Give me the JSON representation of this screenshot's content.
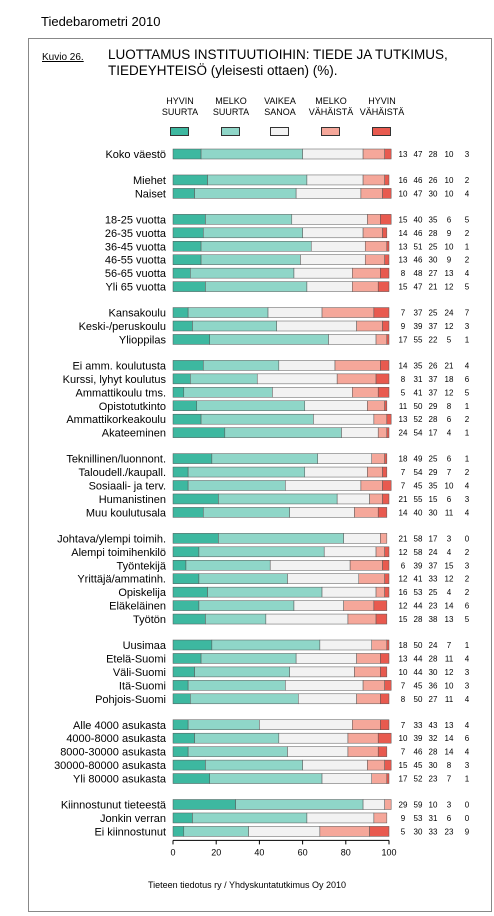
{
  "header": {
    "report_title": "Tiedebarometri 2010",
    "figure_label": "Kuvio 26.",
    "figure_title": "LUOTTAMUS INSTITUUTIOIHIN: TIEDE JA TUTKIMUS, TIEDEYHTEISÖ (yleisesti ottaen) (%)."
  },
  "footer": {
    "source": "Tieteen tiedotus ry / Yhdyskuntatutkimus Oy 2010"
  },
  "colors": [
    "#3db8a0",
    "#8fd6c8",
    "#f2f2f2",
    "#f5a79a",
    "#e85a4f"
  ],
  "chart_data": {
    "type": "bar",
    "orientation": "horizontal",
    "stacked": true,
    "xlim": [
      0,
      100
    ],
    "x_ticks": [
      "0",
      "20",
      "40",
      "60",
      "80",
      "100"
    ],
    "series": [
      {
        "name": "HYVIN SUURTA"
      },
      {
        "name": "MELKO SUURTA"
      },
      {
        "name": "VAIKEA SANOA"
      },
      {
        "name": "MELKO VÄHÄISTÄ"
      },
      {
        "name": "HYVIN VÄHÄISTÄ"
      }
    ],
    "groups": [
      {
        "rows": [
          {
            "label": "Koko väestö",
            "values": [
              13,
              47,
              28,
              10,
              3
            ]
          }
        ]
      },
      {
        "rows": [
          {
            "label": "Miehet",
            "values": [
              16,
              46,
              26,
              10,
              2
            ]
          },
          {
            "label": "Naiset",
            "values": [
              10,
              47,
              30,
              10,
              4
            ]
          }
        ]
      },
      {
        "rows": [
          {
            "label": "18-25 vuotta",
            "values": [
              15,
              40,
              35,
              6,
              5
            ]
          },
          {
            "label": "26-35 vuotta",
            "values": [
              14,
              46,
              28,
              9,
              2
            ]
          },
          {
            "label": "36-45 vuotta",
            "values": [
              13,
              51,
              25,
              10,
              1
            ]
          },
          {
            "label": "46-55 vuotta",
            "values": [
              13,
              46,
              30,
              9,
              2
            ]
          },
          {
            "label": "56-65 vuotta",
            "values": [
              8,
              48,
              27,
              13,
              4
            ]
          },
          {
            "label": "Yli 65 vuotta",
            "values": [
              15,
              47,
              21,
              12,
              5
            ]
          }
        ]
      },
      {
        "rows": [
          {
            "label": "Kansakoulu",
            "values": [
              7,
              37,
              25,
              24,
              7
            ]
          },
          {
            "label": "Keski-/peruskoulu",
            "values": [
              9,
              39,
              37,
              12,
              3
            ]
          },
          {
            "label": "Ylioppilas",
            "values": [
              17,
              55,
              22,
              5,
              1
            ]
          }
        ]
      },
      {
        "rows": [
          {
            "label": "Ei amm. koulutusta",
            "values": [
              14,
              35,
              26,
              21,
              4
            ]
          },
          {
            "label": "Kurssi, lyhyt koulutus",
            "values": [
              8,
              31,
              37,
              18,
              6
            ]
          },
          {
            "label": "Ammattikoulu tms.",
            "values": [
              5,
              41,
              37,
              12,
              5
            ]
          },
          {
            "label": "Opistotutkinto",
            "values": [
              11,
              50,
              29,
              8,
              1
            ]
          },
          {
            "label": "Ammattikorkeakoulu",
            "values": [
              13,
              52,
              28,
              6,
              2
            ]
          },
          {
            "label": "Akateeminen",
            "values": [
              24,
              54,
              17,
              4,
              1
            ]
          }
        ]
      },
      {
        "rows": [
          {
            "label": "Teknillinen/luonnont.",
            "values": [
              18,
              49,
              25,
              6,
              1
            ]
          },
          {
            "label": "Taloudell./kaupall.",
            "values": [
              7,
              54,
              29,
              7,
              2
            ]
          },
          {
            "label": "Sosiaali- ja terv.",
            "values": [
              7,
              45,
              35,
              10,
              4
            ]
          },
          {
            "label": "Humanistinen",
            "values": [
              21,
              55,
              15,
              6,
              3
            ]
          },
          {
            "label": "Muu koulutusala",
            "values": [
              14,
              40,
              30,
              11,
              4
            ]
          }
        ]
      },
      {
        "rows": [
          {
            "label": "Johtava/ylempi toimih.",
            "values": [
              21,
              58,
              17,
              3,
              0
            ]
          },
          {
            "label": "Alempi toimihenkilö",
            "values": [
              12,
              58,
              24,
              4,
              2
            ]
          },
          {
            "label": "Työntekijä",
            "values": [
              6,
              39,
              37,
              15,
              3
            ]
          },
          {
            "label": "Yrittäjä/ammatinh.",
            "values": [
              12,
              41,
              33,
              12,
              2
            ]
          },
          {
            "label": "Opiskelija",
            "values": [
              16,
              53,
              25,
              4,
              2
            ]
          },
          {
            "label": "Eläkeläinen",
            "values": [
              12,
              44,
              23,
              14,
              6
            ]
          },
          {
            "label": "Työtön",
            "values": [
              15,
              28,
              38,
              13,
              5
            ]
          }
        ]
      },
      {
        "rows": [
          {
            "label": "Uusimaa",
            "values": [
              18,
              50,
              24,
              7,
              1
            ]
          },
          {
            "label": "Etelä-Suomi",
            "values": [
              13,
              44,
              28,
              11,
              4
            ]
          },
          {
            "label": "Väli-Suomi",
            "values": [
              10,
              44,
              30,
              12,
              3
            ]
          },
          {
            "label": "Itä-Suomi",
            "values": [
              7,
              45,
              36,
              10,
              3
            ]
          },
          {
            "label": "Pohjois-Suomi",
            "values": [
              8,
              50,
              27,
              11,
              4
            ]
          }
        ]
      },
      {
        "rows": [
          {
            "label": "Alle 4000 asukasta",
            "values": [
              7,
              33,
              43,
              13,
              4
            ]
          },
          {
            "label": "4000-8000 asukasta",
            "values": [
              10,
              39,
              32,
              14,
              6
            ]
          },
          {
            "label": "8000-30000 asukasta",
            "values": [
              7,
              46,
              28,
              14,
              4
            ]
          },
          {
            "label": "30000-80000 asukasta",
            "values": [
              15,
              45,
              30,
              8,
              3
            ]
          },
          {
            "label": "Yli 80000 asukasta",
            "values": [
              17,
              52,
              23,
              7,
              1
            ]
          }
        ]
      },
      {
        "rows": [
          {
            "label": "Kiinnostunut tieteestä",
            "values": [
              29,
              59,
              10,
              3,
              0
            ]
          },
          {
            "label": "Jonkin verran",
            "values": [
              9,
              53,
              31,
              6,
              0
            ]
          },
          {
            "label": "Ei kiinnostunut",
            "values": [
              5,
              30,
              33,
              23,
              9
            ]
          }
        ]
      }
    ]
  }
}
